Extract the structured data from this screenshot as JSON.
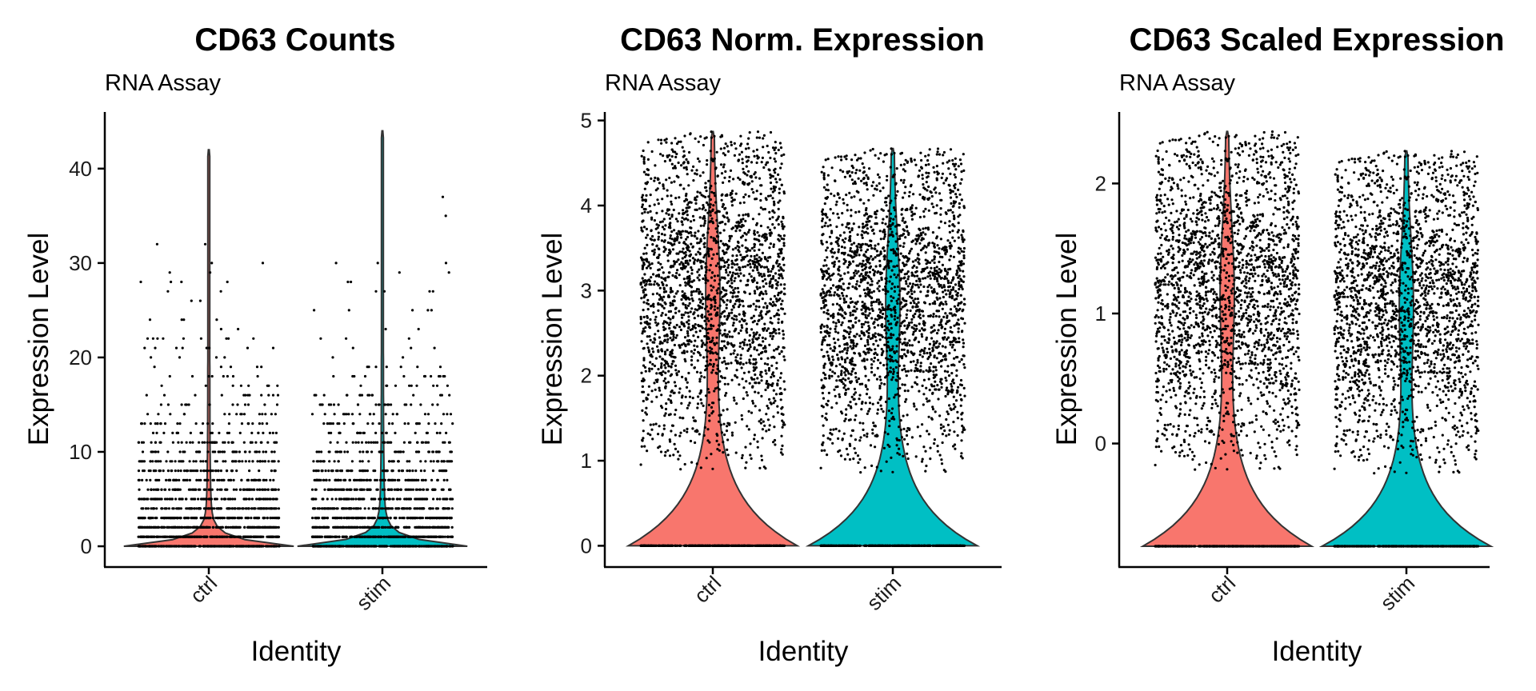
{
  "chart_data": [
    {
      "type": "violin",
      "title": "CD63 Counts",
      "subtitle": "RNA Assay",
      "xlabel": "Identity",
      "ylabel": "Expression Level",
      "categories": [
        "ctrl",
        "stim"
      ],
      "colors": [
        "#F8766D",
        "#00BFC4"
      ],
      "ylim": [
        -2.2,
        46
      ],
      "yticks": [
        0,
        10,
        20,
        30,
        40
      ],
      "ymax_per_group": [
        42,
        44
      ],
      "distribution": "discrete-counts",
      "grid": false,
      "legend": "none"
    },
    {
      "type": "violin",
      "title": "CD63 Norm. Expression",
      "subtitle": "RNA Assay",
      "xlabel": "Identity",
      "ylabel": "Expression Level",
      "categories": [
        "ctrl",
        "stim"
      ],
      "colors": [
        "#F8766D",
        "#00BFC4"
      ],
      "ylim": [
        -0.25,
        5.1
      ],
      "yticks": [
        0,
        1,
        2,
        3,
        4,
        5
      ],
      "ymax_per_group": [
        4.87,
        4.67
      ],
      "distribution": "zero-inflated-continuous",
      "grid": false,
      "legend": "none"
    },
    {
      "type": "violin",
      "title": "CD63 Scaled Expression",
      "subtitle": "RNA Assay",
      "xlabel": "Identity",
      "ylabel": "Expression Level",
      "categories": [
        "ctrl",
        "stim"
      ],
      "colors": [
        "#F8766D",
        "#00BFC4"
      ],
      "ylim": [
        -0.95,
        2.55
      ],
      "yticks": [
        0,
        1,
        2
      ],
      "ymin_per_group": [
        -0.79,
        -0.79
      ],
      "ymax_per_group": [
        2.4,
        2.25
      ],
      "distribution": "zero-inflated-continuous",
      "grid": false,
      "legend": "none"
    }
  ]
}
